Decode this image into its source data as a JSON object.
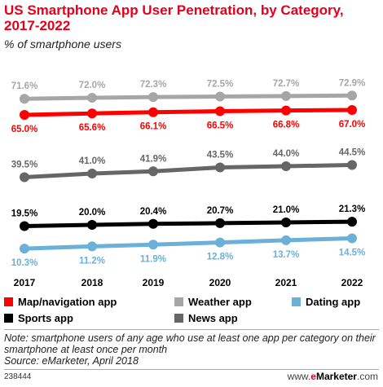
{
  "title": "US Smartphone App User Penetration, by Category, 2017-2022",
  "subtitle": "% of smartphone users",
  "chart_data": {
    "type": "line",
    "x": [
      "2017",
      "2018",
      "2019",
      "2020",
      "2021",
      "2022"
    ],
    "ylim": [
      0,
      80
    ],
    "grid": false,
    "legend_position": "bottom",
    "series": [
      {
        "name": "Weather app",
        "color": "#a6a6a6",
        "values": [
          71.6,
          72.0,
          72.3,
          72.5,
          72.7,
          72.9
        ],
        "labels": [
          "71.6%",
          "72.0%",
          "72.3%",
          "72.5%",
          "72.7%",
          "72.9%"
        ],
        "label_pos": "above"
      },
      {
        "name": "Map/navigation app",
        "color": "#ff0000",
        "values": [
          65.0,
          65.6,
          66.1,
          66.5,
          66.8,
          67.0
        ],
        "labels": [
          "65.0%",
          "65.6%",
          "66.1%",
          "66.5%",
          "66.8%",
          "67.0%"
        ],
        "label_pos": "below"
      },
      {
        "name": "News app",
        "color": "#666666",
        "values": [
          39.5,
          41.0,
          41.9,
          43.5,
          44.0,
          44.5
        ],
        "labels": [
          "39.5%",
          "41.0%",
          "41.9%",
          "43.5%",
          "44.0%",
          "44.5%"
        ],
        "label_pos": "above"
      },
      {
        "name": "Sports app",
        "color": "#000000",
        "values": [
          19.5,
          20.0,
          20.4,
          20.7,
          21.0,
          21.3
        ],
        "labels": [
          "19.5%",
          "20.0%",
          "20.4%",
          "20.7%",
          "21.0%",
          "21.3%"
        ],
        "label_pos": "above"
      },
      {
        "name": "Dating app",
        "color": "#6ab0d8",
        "values": [
          10.3,
          11.2,
          11.9,
          12.8,
          13.7,
          14.5
        ],
        "labels": [
          "10.3%",
          "11.2%",
          "11.9%",
          "12.8%",
          "13.7%",
          "14.5%"
        ],
        "label_pos": "below"
      }
    ]
  },
  "legend": [
    {
      "label": "Map/navigation app",
      "color": "#ff0000"
    },
    {
      "label": "Weather app",
      "color": "#a6a6a6"
    },
    {
      "label": "Dating app",
      "color": "#6ab0d8"
    },
    {
      "label": "Sports app",
      "color": "#000000"
    },
    {
      "label": "News app",
      "color": "#666666"
    }
  ],
  "note": "Note: smartphone users of any age who use at least one app per category on their smartphone at least once per month",
  "source": "Source: eMarketer, April 2018",
  "footer": {
    "id": "238444",
    "brand_prefix": "www.",
    "brand_e": "e",
    "brand_name": "Marketer",
    "brand_suffix": ".com"
  }
}
